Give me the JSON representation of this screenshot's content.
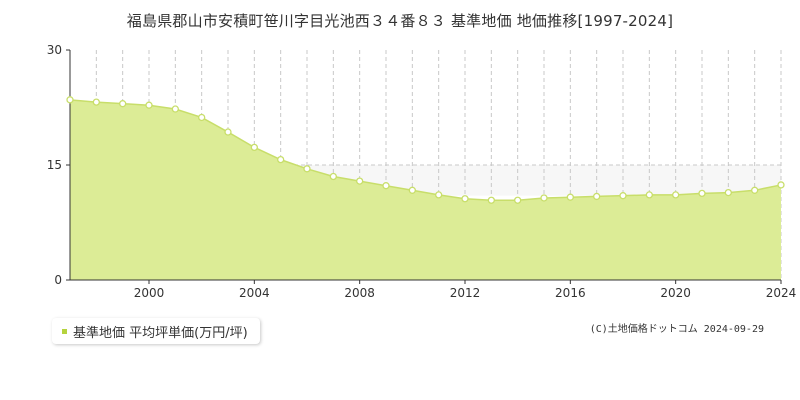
{
  "chart_data": {
    "type": "area",
    "title": "福島県郡山市安積町笹川字目光池西３４番８３ 基準地価 地価推移[1997-2024]",
    "x": [
      1997,
      1998,
      1999,
      2000,
      2001,
      2002,
      2003,
      2004,
      2005,
      2006,
      2007,
      2008,
      2009,
      2010,
      2011,
      2012,
      2013,
      2014,
      2015,
      2016,
      2017,
      2018,
      2019,
      2020,
      2021,
      2022,
      2023,
      2024
    ],
    "series": [
      {
        "name": "基準地価 平均坪単価(万円/坪)",
        "values": [
          23.5,
          23.2,
          23.0,
          22.8,
          22.3,
          21.2,
          19.3,
          17.3,
          15.7,
          14.5,
          13.5,
          12.9,
          12.3,
          11.7,
          11.1,
          10.6,
          10.4,
          10.4,
          10.7,
          10.8,
          10.9,
          11.0,
          11.1,
          11.1,
          11.3,
          11.4,
          11.7,
          12.4
        ]
      }
    ],
    "xticks": [
      "2000",
      "2004",
      "2008",
      "2012",
      "2016",
      "2020",
      "2024"
    ],
    "yticks": [
      "0",
      "15",
      "30"
    ],
    "xlim": [
      1997,
      2024
    ],
    "ylim": [
      0,
      30
    ],
    "grid": "vertical dashed lines each year, dashed line at 15",
    "legend_placement": "bottom-left"
  },
  "legend": {
    "label": "基準地価 平均坪単価(万円/坪)"
  },
  "credit": "(C)土地価格ドットコム 2024-09-29",
  "colors": {
    "area_fill": "#dcec96",
    "line": "#c8de6a",
    "marker_fill": "#ffffff",
    "marker_stroke": "#c8de6a",
    "legend_marker": "#b5d33d",
    "grid": "#c8c8c8",
    "axis": "#333333",
    "band": "#f7f7f7"
  }
}
